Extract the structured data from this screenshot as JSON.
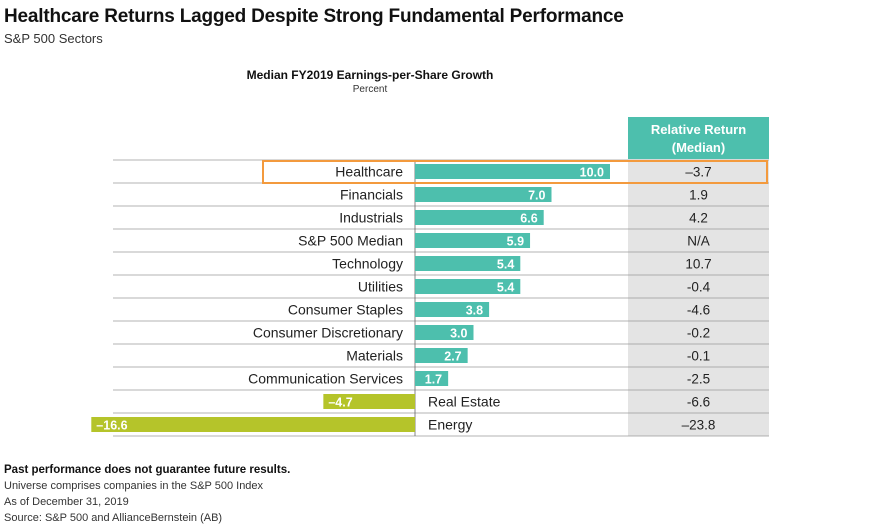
{
  "header": {
    "title": "Healthcare Returns Lagged Despite Strong Fundamental Performance",
    "subtitle": "S&P 500 Sectors"
  },
  "chart_data": {
    "type": "bar",
    "orientation": "horizontal",
    "title": "Median FY2019 Earnings-per-Share Growth",
    "unit_label": "Percent",
    "categories": [
      "Healthcare",
      "Financials",
      "Industrials",
      "S&P 500 Median",
      "Technology",
      "Utilities",
      "Consumer Staples",
      "Consumer Discretionary",
      "Materials",
      "Communication Services",
      "Real Estate",
      "Energy"
    ],
    "values": [
      10.0,
      7.0,
      6.6,
      5.9,
      5.4,
      5.4,
      3.8,
      3.0,
      2.7,
      1.7,
      -4.7,
      -16.6
    ],
    "value_labels": [
      "10.0",
      "7.0",
      "6.6",
      "5.9",
      "5.4",
      "5.4",
      "3.8",
      "3.0",
      "2.7",
      "1.7",
      "–4.7",
      "–16.6"
    ],
    "relative_return_header": [
      "Relative Return",
      "(Median)"
    ],
    "relative_return": [
      "–3.7",
      "1.9",
      "4.2",
      "N/A",
      "10.7",
      "-0.4",
      "-4.6",
      "-0.2",
      "-0.1",
      "-2.5",
      "-6.6",
      "–23.8"
    ],
    "highlight_category": "Healthcare",
    "colors": {
      "positive": "#4dbfad",
      "negative": "#b5c42a",
      "highlight_box": "#f39a3d",
      "relative_bg": "#e4e4e4",
      "header_bg": "#4dbfad",
      "row_line": "#9a9a9a"
    }
  },
  "footer": {
    "disclaimer": "Past performance does not guarantee future results.",
    "universe": "Universe comprises companies in the S&P 500 Index",
    "as_of": "As of December 31, 2019",
    "source": "Source: S&P 500 and AllianceBernstein (AB)"
  }
}
